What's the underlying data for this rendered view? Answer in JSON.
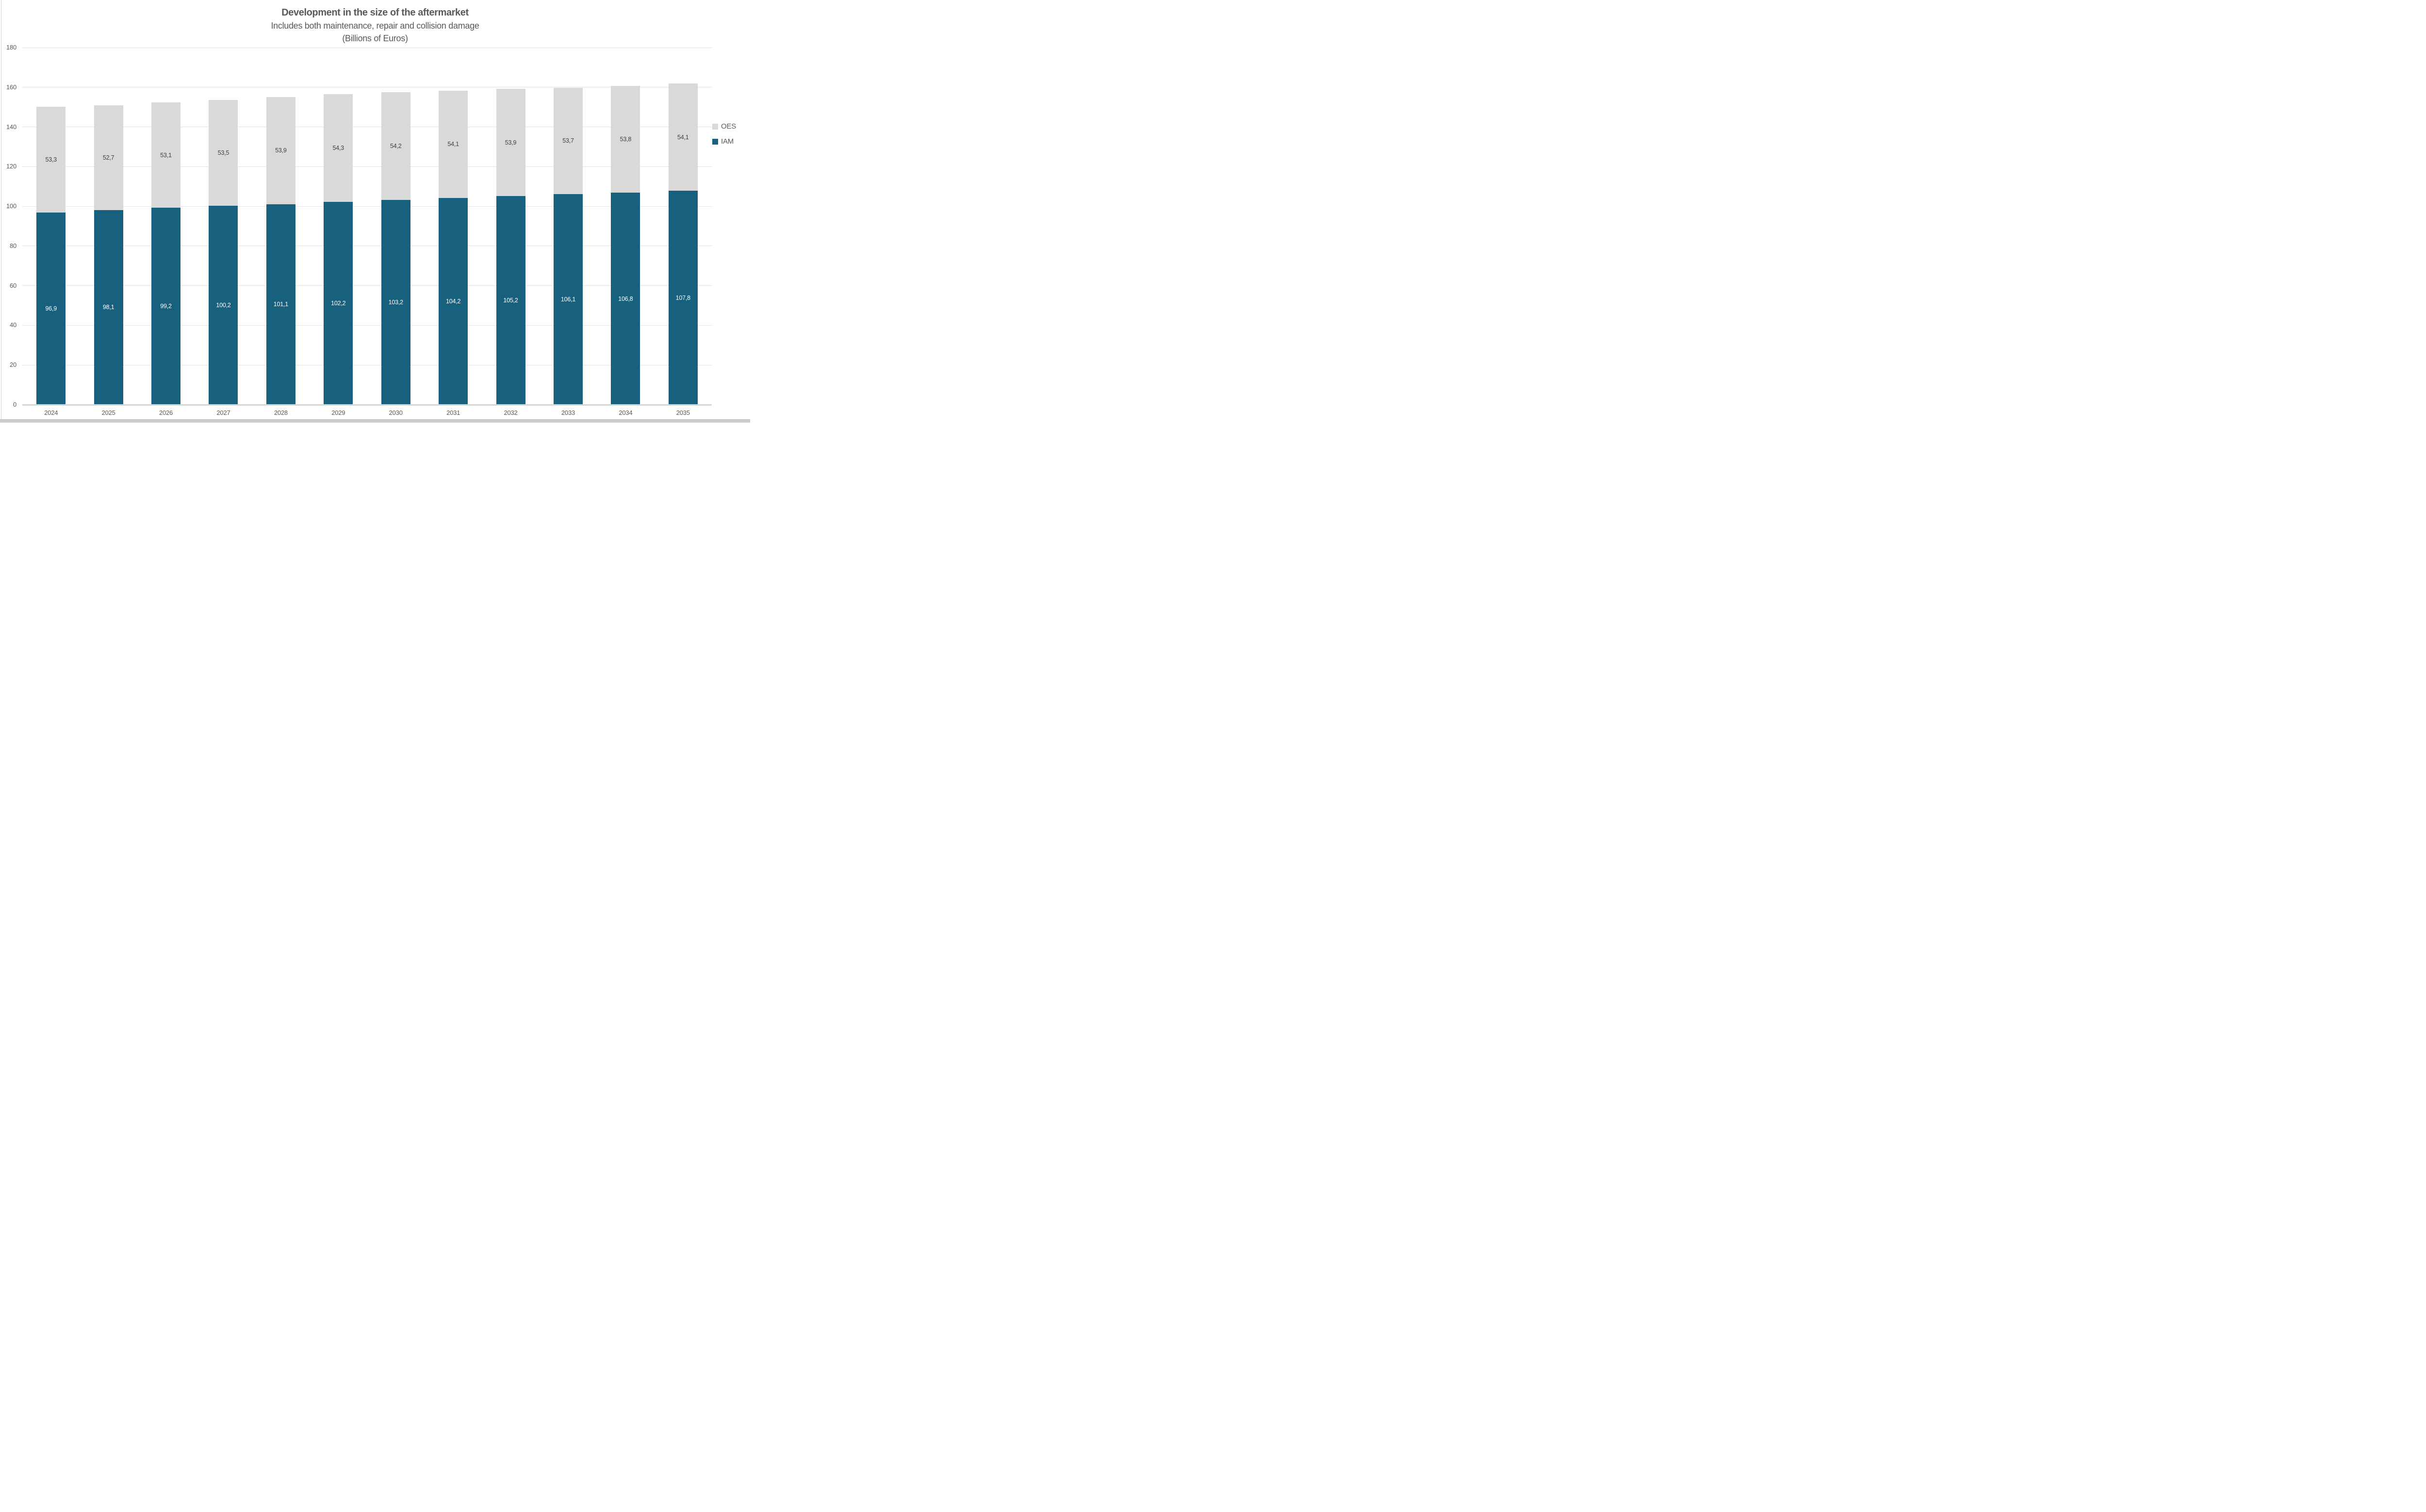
{
  "header": {
    "title": "Development in the size of the aftermarket",
    "subtitle_line1": "Includes both maintenance, repair and collision damage",
    "subtitle_line2": "(Billions of Euros)"
  },
  "legend": {
    "position": "right",
    "items": [
      {
        "label": "OES",
        "color": "#d9d9d9"
      },
      {
        "label": "IAM",
        "color": "#17607e"
      }
    ]
  },
  "chart_data": {
    "type": "bar",
    "stacked": true,
    "title": "Development in the size of the aftermarket",
    "subtitle": "Includes both maintenance, repair and collision damage (Billions of Euros)",
    "xlabel": "",
    "ylabel": "",
    "ylim": [
      0,
      180
    ],
    "yticks": [
      0,
      20,
      40,
      60,
      80,
      100,
      120,
      140,
      160,
      180
    ],
    "grid": true,
    "legend_position": "right",
    "categories": [
      "2024",
      "2025",
      "2026",
      "2027",
      "2028",
      "2029",
      "2030",
      "2031",
      "2032",
      "2033",
      "2034",
      "2035"
    ],
    "series": [
      {
        "name": "IAM",
        "color": "#17607e",
        "label_color": "#ffffff",
        "values": [
          96.9,
          98.1,
          99.2,
          100.2,
          101.1,
          102.2,
          103.2,
          104.2,
          105.2,
          106.1,
          106.8,
          107.8
        ],
        "labels": [
          "96,9",
          "98,1",
          "99,2",
          "100,2",
          "101,1",
          "102,2",
          "103,2",
          "104,2",
          "105,2",
          "106,1",
          "106,8",
          "107,8"
        ]
      },
      {
        "name": "OES",
        "color": "#d9d9d9",
        "label_color": "#404040",
        "values": [
          53.3,
          52.7,
          53.1,
          53.5,
          53.9,
          54.3,
          54.2,
          54.1,
          53.9,
          53.7,
          53.8,
          54.1
        ],
        "labels": [
          "53,3",
          "52,7",
          "53,1",
          "53,5",
          "53,9",
          "54,3",
          "54,2",
          "54,1",
          "53,9",
          "53,7",
          "53,8",
          "54,1"
        ]
      }
    ]
  }
}
